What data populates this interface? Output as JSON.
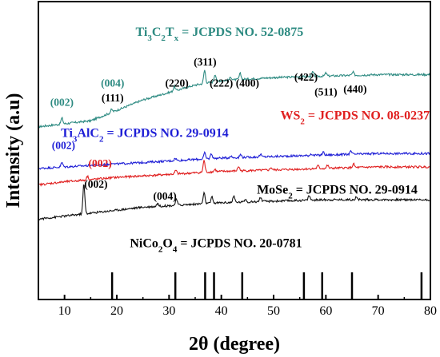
{
  "chart_data": {
    "type": "line",
    "xlabel": "2θ (degree)",
    "ylabel": "Intensity (a.u)",
    "xlim": [
      5,
      80
    ],
    "xticks": [
      10,
      20,
      30,
      40,
      50,
      60,
      70,
      80
    ],
    "grid": false,
    "series": [
      {
        "name": "Ti3C2Tx",
        "color": "#2e8b82",
        "baseline": [
          [
            5,
            0.58
          ],
          [
            15,
            0.6
          ],
          [
            25,
            0.67
          ],
          [
            35,
            0.72
          ],
          [
            40,
            0.735
          ],
          [
            50,
            0.745
          ],
          [
            60,
            0.75
          ],
          [
            70,
            0.755
          ],
          [
            80,
            0.755
          ]
        ],
        "peaks": [
          [
            9.5,
            0.02
          ],
          [
            19,
            0.01
          ],
          [
            31,
            0.015
          ],
          [
            36.8,
            0.045
          ],
          [
            38.8,
            0.025
          ],
          [
            41.8,
            0.01
          ],
          [
            43.6,
            0.02
          ],
          [
            57.5,
            0.015
          ],
          [
            60,
            0.01
          ],
          [
            65.2,
            0.01
          ]
        ]
      },
      {
        "name": "Ti3AlC2",
        "color": "#1f1fd6",
        "baseline": [
          [
            5,
            0.44
          ],
          [
            10,
            0.445
          ],
          [
            20,
            0.455
          ],
          [
            30,
            0.465
          ],
          [
            40,
            0.475
          ],
          [
            50,
            0.48
          ],
          [
            60,
            0.485
          ],
          [
            70,
            0.49
          ],
          [
            80,
            0.49
          ]
        ],
        "peaks": [
          [
            9.5,
            0.015
          ],
          [
            19.1,
            0.005
          ],
          [
            31.2,
            0.008
          ],
          [
            36.8,
            0.02
          ],
          [
            38.1,
            0.016
          ],
          [
            41.8,
            0.006
          ],
          [
            43.7,
            0.01
          ],
          [
            47.5,
            0.008
          ],
          [
            57.2,
            0.006
          ],
          [
            59.5,
            0.01
          ],
          [
            64.8,
            0.01
          ]
        ]
      },
      {
        "name": "WS2",
        "color": "#e02020",
        "baseline": [
          [
            5,
            0.385
          ],
          [
            10,
            0.395
          ],
          [
            20,
            0.41
          ],
          [
            30,
            0.42
          ],
          [
            40,
            0.43
          ],
          [
            50,
            0.435
          ],
          [
            60,
            0.44
          ],
          [
            70,
            0.445
          ],
          [
            80,
            0.445
          ]
        ],
        "peaks": [
          [
            14.4,
            0.012
          ],
          [
            31.3,
            0.012
          ],
          [
            36.7,
            0.04
          ],
          [
            38.8,
            0.008
          ],
          [
            43.3,
            0.015
          ],
          [
            49.5,
            0.008
          ],
          [
            58.5,
            0.01
          ],
          [
            60.3,
            0.01
          ],
          [
            65.3,
            0.012
          ]
        ]
      },
      {
        "name": "MoSe2",
        "color": "#111111",
        "baseline": [
          [
            5,
            0.27
          ],
          [
            10,
            0.28
          ],
          [
            15,
            0.29
          ],
          [
            20,
            0.3
          ],
          [
            25,
            0.31
          ],
          [
            30,
            0.315
          ],
          [
            40,
            0.325
          ],
          [
            50,
            0.33
          ],
          [
            60,
            0.335
          ],
          [
            70,
            0.335
          ],
          [
            80,
            0.335
          ]
        ],
        "peaks": [
          [
            13.7,
            0.1
          ],
          [
            27.8,
            0.01
          ],
          [
            31.4,
            0.02
          ],
          [
            36.7,
            0.035
          ],
          [
            38.2,
            0.02
          ],
          [
            42.4,
            0.02
          ],
          [
            44.6,
            0.01
          ],
          [
            47.5,
            0.015
          ],
          [
            56.8,
            0.015
          ],
          [
            65.8,
            0.008
          ]
        ]
      }
    ],
    "reference_lines": {
      "name": "NiCo2O4 = JCPDS NO. 20-0781",
      "positions": [
        19.1,
        31.2,
        36.9,
        38.6,
        44.0,
        55.8,
        59.3,
        65.0,
        78.3
      ]
    },
    "peak_labels": [
      {
        "text": "(002)",
        "x": 9.5,
        "y": 0.65,
        "color": "#2e8b82"
      },
      {
        "text": "(004)",
        "x": 19.2,
        "y": 0.715,
        "color": "#2e8b82"
      },
      {
        "text": "(111)",
        "x": 19.2,
        "y": 0.665,
        "color": "#000000"
      },
      {
        "text": "(220)",
        "x": 31.5,
        "y": 0.715,
        "color": "#000000"
      },
      {
        "text": "(311)",
        "x": 36.9,
        "y": 0.785,
        "color": "#000000"
      },
      {
        "text": "(222)",
        "x": 40.0,
        "y": 0.715,
        "color": "#000000"
      },
      {
        "text": "(400)",
        "x": 45.0,
        "y": 0.715,
        "color": "#000000"
      },
      {
        "text": "(422)",
        "x": 56.2,
        "y": 0.735,
        "color": "#000000"
      },
      {
        "text": "(511)",
        "x": 60.0,
        "y": 0.685,
        "color": "#000000"
      },
      {
        "text": "(440)",
        "x": 65.6,
        "y": 0.695,
        "color": "#000000"
      },
      {
        "text": "(002)",
        "x": 9.8,
        "y": 0.505,
        "color": "#1f1fd6"
      },
      {
        "text": "(002)",
        "x": 16.8,
        "y": 0.445,
        "color": "#e02020"
      },
      {
        "text": "(002)",
        "x": 16.0,
        "y": 0.375,
        "color": "#000000"
      },
      {
        "text": "(004)",
        "x": 29.2,
        "y": 0.335,
        "color": "#000000"
      }
    ],
    "annotations": [
      {
        "id": "ti3c2tx",
        "color": "#2e8b82",
        "x": 23.6,
        "y": 0.885,
        "parts": [
          [
            "Ti",
            ""
          ],
          [
            "3",
            "sub"
          ],
          [
            "C",
            ""
          ],
          [
            "2",
            "sub"
          ],
          [
            "T",
            ""
          ],
          [
            "x",
            "sub"
          ],
          [
            " = JCPDS NO. 52-0875",
            ""
          ]
        ]
      },
      {
        "id": "ws2",
        "color": "#e02020",
        "x": 51.3,
        "y": 0.605,
        "parts": [
          [
            "WS",
            ""
          ],
          [
            "2",
            "sub"
          ],
          [
            " = JCPDS NO. 08-0237",
            ""
          ]
        ]
      },
      {
        "id": "ti3alc2",
        "color": "#1f1fd6",
        "x": 9.3,
        "y": 0.545,
        "parts": [
          [
            "Ti",
            ""
          ],
          [
            "3",
            "sub"
          ],
          [
            "AlC",
            ""
          ],
          [
            "2",
            "sub"
          ],
          [
            " = JCPDS NO. 29-0914",
            ""
          ]
        ]
      },
      {
        "id": "mose2",
        "color": "#000000",
        "x": 46.8,
        "y": 0.355,
        "parts": [
          [
            "MoSe",
            ""
          ],
          [
            "2",
            "sub"
          ],
          [
            " = JCPDS NO. 29-0914",
            ""
          ]
        ]
      },
      {
        "id": "nico2o4",
        "color": "#000000",
        "x": 22.5,
        "y": 0.175,
        "parts": [
          [
            "NiCo",
            ""
          ],
          [
            "2",
            "sub"
          ],
          [
            "O",
            ""
          ],
          [
            "4",
            "sub"
          ],
          [
            " = JCPDS NO. 20-0781",
            ""
          ]
        ]
      }
    ]
  }
}
